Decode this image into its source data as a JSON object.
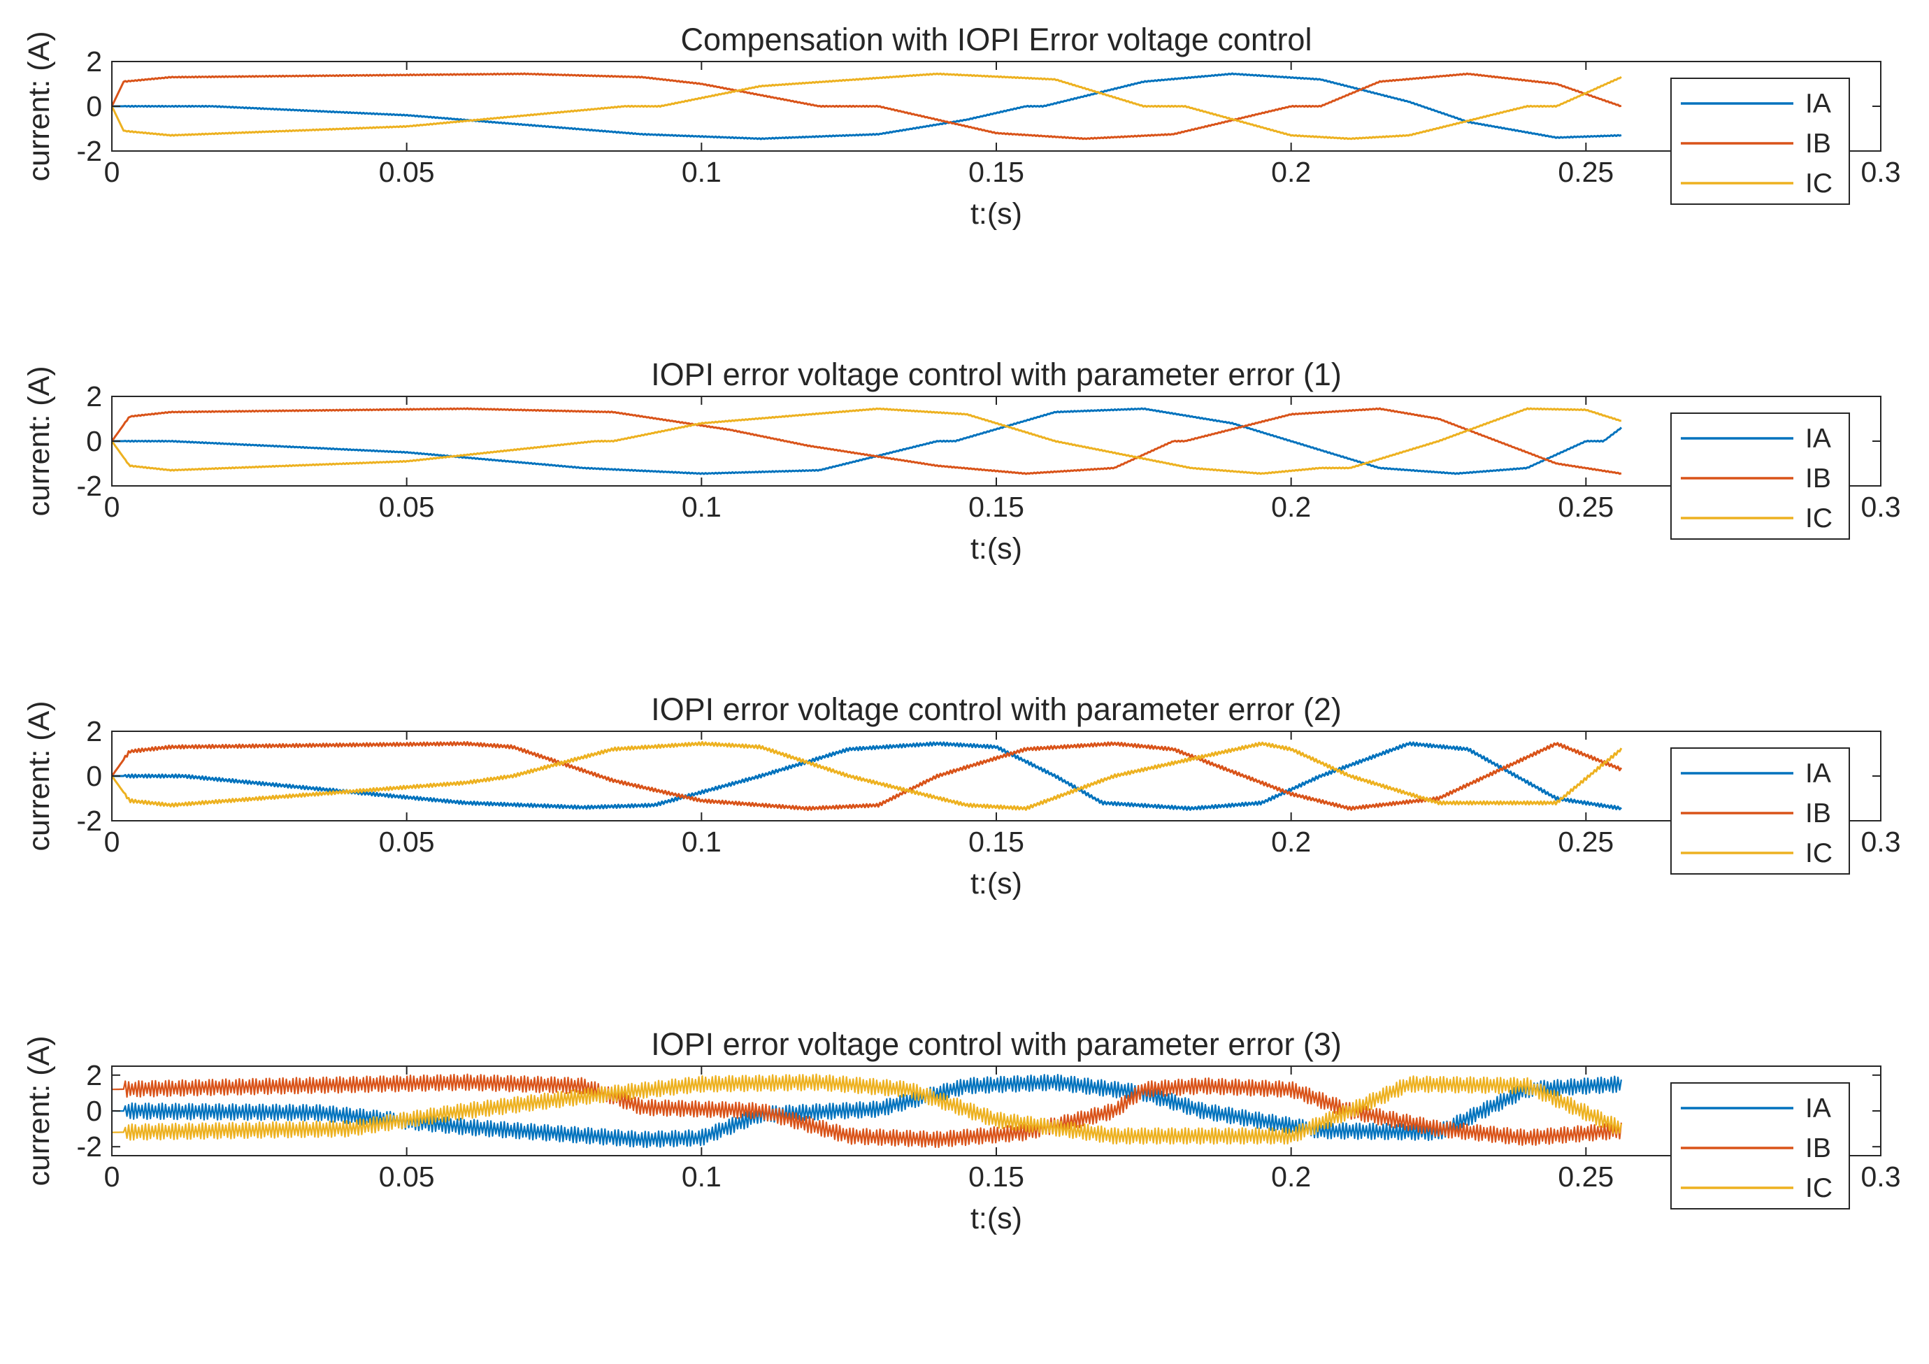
{
  "figure": {
    "colors": {
      "IA": "#0072BD",
      "IB": "#D95319",
      "IC": "#EDB120",
      "axis": "#262626",
      "frame": "#000000"
    }
  },
  "chart_data": [
    {
      "type": "line",
      "title": "Compensation with IOPI Error voltage control",
      "xlabel": "t:(s)",
      "ylabel": "current: (A)",
      "xlim": [
        0,
        0.3
      ],
      "ylim": [
        -2,
        2
      ],
      "xticks": [
        "0",
        "0.05",
        "0.1",
        "0.15",
        "0.2",
        "0.25",
        "0.3"
      ],
      "yticks": [
        "2",
        "0",
        "-2"
      ],
      "legend": {
        "position": "top-right",
        "entries": [
          "IA",
          "IB",
          "IC"
        ]
      },
      "noise": 0.02,
      "series": [
        {
          "name": "IA",
          "x": [
            0,
            0.017,
            0.05,
            0.09,
            0.11,
            0.13,
            0.145,
            0.155,
            0.158,
            0.175,
            0.19,
            0.205,
            0.22,
            0.23,
            0.245,
            0.256
          ],
          "y": [
            0,
            0,
            -0.4,
            -1.25,
            -1.45,
            -1.25,
            -0.6,
            0,
            0,
            1.1,
            1.45,
            1.2,
            0.2,
            -0.7,
            -1.4,
            -1.3
          ]
        },
        {
          "name": "IB",
          "x": [
            0,
            0.002,
            0.01,
            0.07,
            0.09,
            0.1,
            0.12,
            0.13,
            0.15,
            0.165,
            0.18,
            0.2,
            0.205,
            0.215,
            0.23,
            0.245,
            0.256
          ],
          "y": [
            0,
            1.1,
            1.3,
            1.45,
            1.3,
            1.0,
            0,
            0,
            -1.2,
            -1.45,
            -1.25,
            0,
            0,
            1.1,
            1.45,
            1.0,
            0
          ]
        },
        {
          "name": "IC",
          "x": [
            0,
            0.002,
            0.01,
            0.05,
            0.087,
            0.093,
            0.11,
            0.14,
            0.16,
            0.175,
            0.182,
            0.2,
            0.21,
            0.22,
            0.24,
            0.245,
            0.256
          ],
          "y": [
            0,
            -1.1,
            -1.3,
            -0.9,
            0,
            0,
            0.9,
            1.45,
            1.2,
            0,
            0,
            -1.3,
            -1.45,
            -1.3,
            0,
            0,
            1.3
          ]
        }
      ]
    },
    {
      "type": "line",
      "title": "IOPI error voltage control with parameter error (1)",
      "xlabel": "t:(s)",
      "ylabel": "current: (A)",
      "xlim": [
        0,
        0.3
      ],
      "ylim": [
        -2,
        2
      ],
      "xticks": [
        "0",
        "0.05",
        "0.1",
        "0.15",
        "0.2",
        "0.25",
        "0.3"
      ],
      "yticks": [
        "2",
        "0",
        "-2"
      ],
      "legend": {
        "position": "top-right",
        "entries": [
          "IA",
          "IB",
          "IC"
        ]
      },
      "noise": 0.02,
      "series": [
        {
          "name": "IA",
          "x": [
            0,
            0.01,
            0.05,
            0.08,
            0.1,
            0.12,
            0.14,
            0.143,
            0.16,
            0.175,
            0.19,
            0.205,
            0.215,
            0.228,
            0.24,
            0.25,
            0.253,
            0.256
          ],
          "y": [
            0,
            0,
            -0.5,
            -1.2,
            -1.45,
            -1.3,
            0,
            0,
            1.3,
            1.45,
            0.8,
            -0.4,
            -1.2,
            -1.45,
            -1.2,
            0,
            0,
            0.6
          ]
        },
        {
          "name": "IB",
          "x": [
            0,
            0.003,
            0.01,
            0.06,
            0.085,
            0.105,
            0.118,
            0.14,
            0.155,
            0.17,
            0.18,
            0.182,
            0.2,
            0.215,
            0.225,
            0.235,
            0.245,
            0.256
          ],
          "y": [
            0,
            1.1,
            1.3,
            1.45,
            1.3,
            0.5,
            -0.2,
            -1.1,
            -1.45,
            -1.2,
            0,
            0,
            1.2,
            1.45,
            1.0,
            0,
            -1.0,
            -1.45
          ]
        },
        {
          "name": "IC",
          "x": [
            0,
            0.003,
            0.01,
            0.05,
            0.082,
            0.085,
            0.1,
            0.13,
            0.145,
            0.16,
            0.183,
            0.195,
            0.205,
            0.21,
            0.225,
            0.24,
            0.25,
            0.256
          ],
          "y": [
            0,
            -1.1,
            -1.3,
            -0.9,
            0,
            0,
            0.8,
            1.45,
            1.2,
            0,
            -1.2,
            -1.45,
            -1.2,
            -1.2,
            0,
            1.45,
            1.4,
            0.9
          ]
        }
      ]
    },
    {
      "type": "line",
      "title": "IOPI error voltage control with parameter error (2)",
      "xlabel": "t:(s)",
      "ylabel": "current: (A)",
      "xlim": [
        0,
        0.3
      ],
      "ylim": [
        -2,
        2
      ],
      "xticks": [
        "0",
        "0.05",
        "0.1",
        "0.15",
        "0.2",
        "0.25",
        "0.3"
      ],
      "yticks": [
        "2",
        "0",
        "-2"
      ],
      "legend": {
        "position": "top-right",
        "entries": [
          "IA",
          "IB",
          "IC"
        ]
      },
      "noise": 0.07,
      "series": [
        {
          "name": "IA",
          "x": [
            0,
            0.012,
            0.06,
            0.08,
            0.092,
            0.11,
            0.125,
            0.14,
            0.15,
            0.16,
            0.168,
            0.183,
            0.195,
            0.205,
            0.22,
            0.23,
            0.245,
            0.256
          ],
          "y": [
            0,
            0,
            -1.2,
            -1.4,
            -1.3,
            0,
            1.2,
            1.45,
            1.3,
            0,
            -1.2,
            -1.45,
            -1.2,
            0,
            1.45,
            1.2,
            -1.0,
            -1.45
          ]
        },
        {
          "name": "IB",
          "x": [
            0,
            0.003,
            0.01,
            0.06,
            0.068,
            0.085,
            0.1,
            0.118,
            0.13,
            0.14,
            0.155,
            0.17,
            0.18,
            0.2,
            0.21,
            0.225,
            0.245,
            0.256
          ],
          "y": [
            0,
            1.1,
            1.3,
            1.45,
            1.3,
            -0.2,
            -1.1,
            -1.45,
            -1.3,
            0,
            1.2,
            1.45,
            1.2,
            -0.8,
            -1.45,
            -1.0,
            1.45,
            0.3
          ]
        },
        {
          "name": "IC",
          "x": [
            0,
            0.003,
            0.01,
            0.06,
            0.068,
            0.085,
            0.1,
            0.11,
            0.125,
            0.145,
            0.155,
            0.17,
            0.195,
            0.2,
            0.21,
            0.225,
            0.245,
            0.256
          ],
          "y": [
            0,
            -1.1,
            -1.3,
            -0.3,
            0,
            1.2,
            1.45,
            1.3,
            0,
            -1.3,
            -1.45,
            0,
            1.45,
            1.2,
            0,
            -1.2,
            -1.2,
            1.2
          ]
        }
      ]
    },
    {
      "type": "line",
      "title": "IOPI error voltage control with parameter error (3)",
      "xlabel": "t:(s)",
      "ylabel": "current: (A)",
      "xlim": [
        0,
        0.3
      ],
      "ylim": [
        -2.5,
        2.5
      ],
      "xticks": [
        "0",
        "0.05",
        "0.1",
        "0.15",
        "0.2",
        "0.25",
        "0.3"
      ],
      "yticks": [
        "2",
        "0",
        "-2"
      ],
      "legend": {
        "position": "top-right",
        "entries": [
          "IA",
          "IB",
          "IC"
        ]
      },
      "noise": 0.45,
      "series": [
        {
          "name": "IA",
          "x": [
            0,
            0.035,
            0.06,
            0.09,
            0.1,
            0.11,
            0.13,
            0.145,
            0.16,
            0.175,
            0.185,
            0.205,
            0.225,
            0.24,
            0.256
          ],
          "y": [
            0,
            -0.1,
            -0.9,
            -1.6,
            -1.5,
            -0.2,
            0.1,
            1.4,
            1.6,
            1.0,
            0,
            -1.1,
            -1.2,
            1.2,
            1.5
          ]
        },
        {
          "name": "IB",
          "x": [
            0,
            0.06,
            0.08,
            0.09,
            0.11,
            0.125,
            0.14,
            0.155,
            0.17,
            0.175,
            0.185,
            0.2,
            0.21,
            0.225,
            0.24,
            0.256
          ],
          "y": [
            1.2,
            1.6,
            1.4,
            0.2,
            0,
            -1.4,
            -1.6,
            -1.2,
            0,
            1.2,
            1.4,
            1.2,
            0,
            -1.0,
            -1.5,
            -1.1
          ]
        },
        {
          "name": "IC",
          "x": [
            0,
            0.04,
            0.06,
            0.08,
            0.1,
            0.12,
            0.135,
            0.15,
            0.17,
            0.2,
            0.21,
            0.22,
            0.24,
            0.256
          ],
          "y": [
            -1.2,
            -1.0,
            0,
            0.8,
            1.5,
            1.6,
            1.2,
            -0.5,
            -1.4,
            -1.4,
            0,
            1.5,
            1.4,
            -1.0
          ]
        }
      ]
    }
  ]
}
